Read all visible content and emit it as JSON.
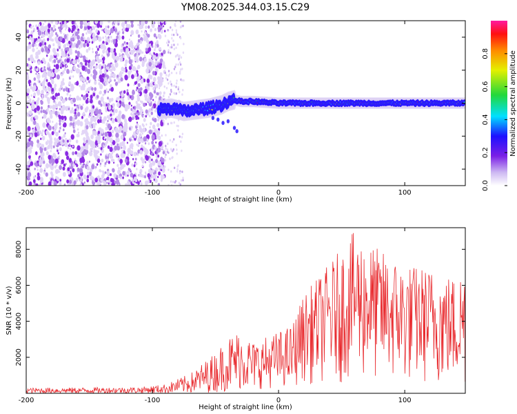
{
  "title": "YM08.2025.344.03.15.C29",
  "colors": {
    "snr_line": "#e8262a",
    "scatter_point": "#8a2be2",
    "axis": "#000000"
  },
  "chart_data": [
    {
      "type": "heatmap",
      "xlabel": "Height of straight line (km)",
      "ylabel": "Frequency (Hz)",
      "xlim": [
        -200,
        148
      ],
      "ylim": [
        -50,
        50
      ],
      "xticks": [
        -200,
        -100,
        0,
        100
      ],
      "yticks": [
        -40,
        -20,
        0,
        20,
        40
      ],
      "colorbar": {
        "label": "Normalized spectral amplitude",
        "range": [
          0,
          1
        ],
        "ticks": [
          "0.0",
          "0.2",
          "0.4",
          "0.6",
          "0.8"
        ]
      },
      "regions": [
        {
          "name": "noise",
          "x": [
            -200,
            -90
          ],
          "y": [
            -50,
            50
          ],
          "level": 0.1
        },
        {
          "name": "sparse",
          "x": [
            -90,
            -75
          ],
          "y": [
            -50,
            50
          ],
          "level": 0.05
        },
        {
          "name": "onset",
          "x": [
            -92,
            -32
          ],
          "y": [
            -8,
            2
          ],
          "level": 0.35
        },
        {
          "name": "main-band",
          "x": [
            -32,
            148
          ],
          "y": [
            -2,
            2
          ],
          "level": 0.55
        }
      ],
      "ridge": [
        {
          "x": -95,
          "y": -4
        },
        {
          "x": -85,
          "y": -3
        },
        {
          "x": -75,
          "y": -5
        },
        {
          "x": -65,
          "y": -4
        },
        {
          "x": -55,
          "y": -3
        },
        {
          "x": -45,
          "y": -1
        },
        {
          "x": -40,
          "y": 1
        },
        {
          "x": -35,
          "y": 2
        },
        {
          "x": -30,
          "y": 1
        },
        {
          "x": -20,
          "y": 1
        },
        {
          "x": 0,
          "y": 0
        },
        {
          "x": 50,
          "y": 0
        },
        {
          "x": 100,
          "y": 0
        },
        {
          "x": 148,
          "y": 0
        }
      ]
    },
    {
      "type": "line",
      "xlabel": "Height of straight line (km)",
      "ylabel": "SNR (10 * v/v)",
      "xlim": [
        -200,
        148
      ],
      "ylim": [
        0,
        9200
      ],
      "xticks": [
        -200,
        -100,
        0,
        100
      ],
      "yticks": [
        2000,
        4000,
        6000,
        8000
      ],
      "envelope": [
        {
          "x": -200,
          "lo": 0,
          "hi": 300
        },
        {
          "x": -110,
          "lo": 0,
          "hi": 350
        },
        {
          "x": -90,
          "lo": 0,
          "hi": 500
        },
        {
          "x": -70,
          "lo": 0,
          "hi": 1100
        },
        {
          "x": -50,
          "lo": 50,
          "hi": 2300
        },
        {
          "x": -40,
          "lo": 100,
          "hi": 3200
        },
        {
          "x": -30,
          "lo": 200,
          "hi": 3600
        },
        {
          "x": -20,
          "lo": 200,
          "hi": 2900
        },
        {
          "x": -5,
          "lo": 300,
          "hi": 3300
        },
        {
          "x": 10,
          "lo": 400,
          "hi": 3800
        },
        {
          "x": 20,
          "lo": 500,
          "hi": 5500
        },
        {
          "x": 40,
          "lo": 500,
          "hi": 7200
        },
        {
          "x": 60,
          "lo": 600,
          "hi": 9000
        },
        {
          "x": 80,
          "lo": 500,
          "hi": 8000
        },
        {
          "x": 100,
          "lo": 400,
          "hi": 7200
        },
        {
          "x": 120,
          "lo": 400,
          "hi": 7000
        },
        {
          "x": 140,
          "lo": 300,
          "hi": 6500
        },
        {
          "x": 148,
          "lo": 300,
          "hi": 7200
        }
      ]
    }
  ]
}
